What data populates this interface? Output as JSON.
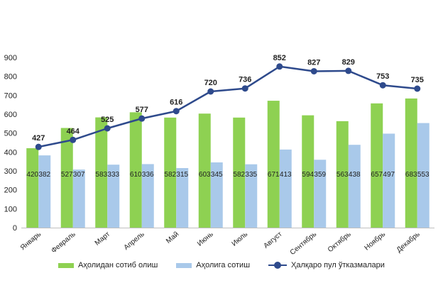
{
  "chart_data": {
    "type": "bar",
    "categories": [
      "Январь",
      "Февраль",
      "Март",
      "Апрель",
      "Май",
      "Июнь",
      "Июль",
      "Август",
      "Сентябрь",
      "Октябрь",
      "Ноябрь",
      "Декабрь"
    ],
    "series": [
      {
        "name": "Аҳолидан сотиб олиш",
        "type": "bar",
        "color": "#8ed152",
        "values": [
          420,
          527,
          583,
          610,
          582,
          603,
          582,
          671,
          594,
          563,
          657,
          683
        ]
      },
      {
        "name": "Аҳолига сотиш",
        "type": "bar",
        "color": "#a9c9ea",
        "values": [
          382,
          307,
          333,
          336,
          315,
          345,
          335,
          413,
          359,
          438,
          497,
          553
        ]
      },
      {
        "name": "Ҳалқаро пул ўтказмалари",
        "type": "line",
        "color": "#2e4a8c",
        "values": [
          427,
          464,
          525,
          577,
          616,
          720,
          736,
          852,
          827,
          829,
          753,
          735
        ]
      }
    ],
    "yticks": [
      0,
      100,
      200,
      300,
      400,
      500,
      600,
      700,
      800,
      900
    ],
    "ylim": [
      0,
      900
    ],
    "title": "",
    "xlabel": "",
    "ylabel": "",
    "grid": false,
    "legend_position": "bottom"
  }
}
